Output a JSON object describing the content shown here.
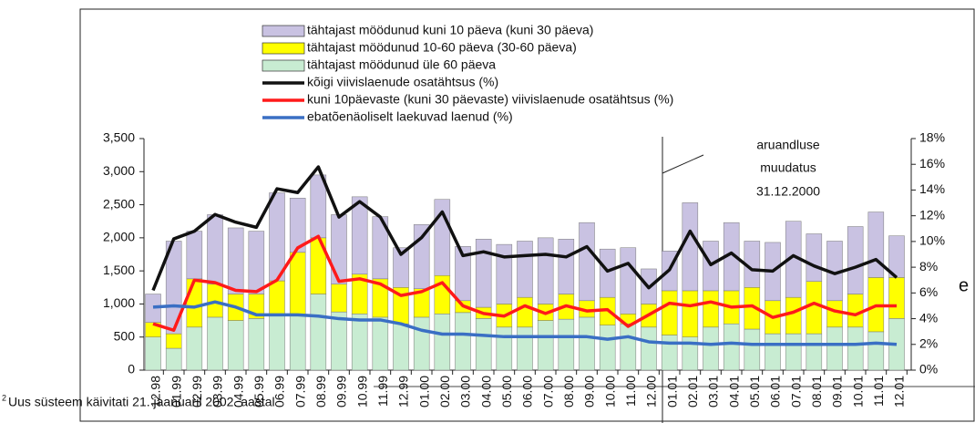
{
  "chart_data": {
    "type": "bar",
    "categories": [
      "12.98",
      "01.99",
      "02.99",
      "03.99",
      "04.99",
      "05.99",
      "06.99",
      "07.99",
      "08.99",
      "09.99",
      "10.99",
      "11.99",
      "12.99",
      "01.00",
      "02.00",
      "03.00",
      "04.00",
      "05.00",
      "06.00",
      "07.00",
      "08.00",
      "09.00",
      "10.00",
      "11.00",
      "12.00",
      "01.01",
      "02.01",
      "03.01",
      "04.01",
      "05.01",
      "06.01",
      "07.01",
      "08.01",
      "09.01",
      "10.01",
      "11.01",
      "12.01"
    ],
    "series": [
      {
        "name": "tähtajast möödunud üle 60 päeva",
        "color": "#c8ecd2",
        "kind": "bar",
        "values": [
          500,
          330,
          650,
          800,
          750,
          780,
          830,
          830,
          1150,
          880,
          850,
          800,
          700,
          800,
          850,
          870,
          780,
          650,
          650,
          750,
          770,
          800,
          680,
          700,
          650,
          530,
          500,
          650,
          700,
          620,
          550,
          550,
          550,
          650,
          650,
          580,
          780
        ]
      },
      {
        "name": "tähtajast möödunud 10-60 päeva (30-60 päeva)",
        "color": "#ffff00",
        "kind": "bar",
        "values": [
          220,
          220,
          730,
          500,
          400,
          370,
          520,
          950,
          850,
          420,
          600,
          580,
          550,
          430,
          580,
          180,
          170,
          350,
          450,
          250,
          380,
          250,
          420,
          150,
          350,
          670,
          700,
          550,
          500,
          630,
          500,
          550,
          790,
          400,
          500,
          820,
          620
        ]
      },
      {
        "name": "tähtajast möödunud kuni 10 päeva (kuni 30 päeva)",
        "color": "#c9c2e2",
        "kind": "bar",
        "values": [
          430,
          1400,
          720,
          1050,
          1000,
          950,
          1330,
          820,
          950,
          1050,
          1170,
          940,
          600,
          970,
          1150,
          820,
          1030,
          900,
          850,
          1000,
          830,
          1180,
          730,
          1000,
          530,
          600,
          1330,
          750,
          1030,
          700,
          880,
          1150,
          720,
          900,
          1020,
          990,
          630
        ]
      },
      {
        "name": "kõigi viivislaenude osatähtsus (%)",
        "color": "#111111",
        "kind": "line",
        "axis": "y2",
        "values": [
          6.2,
          10.2,
          10.8,
          12.1,
          11.5,
          11.1,
          14.1,
          13.8,
          15.8,
          11.9,
          13.1,
          11.9,
          9.0,
          10.3,
          12.3,
          8.9,
          9.2,
          8.8,
          8.9,
          9.0,
          8.8,
          9.6,
          7.7,
          8.3,
          6.4,
          7.8,
          10.8,
          8.2,
          9.1,
          7.8,
          7.7,
          8.9,
          8.1,
          7.5,
          8.0,
          8.6,
          7.2
        ]
      },
      {
        "name": "kuni 10päevaste (kuni 30 päevaste) viivislaenude osatähtsus (%)",
        "color": "#ff1a1a",
        "kind": "line",
        "axis": "y2",
        "values": [
          3.6,
          3.1,
          7.0,
          6.8,
          6.2,
          6.1,
          7.0,
          9.5,
          10.4,
          6.9,
          7.1,
          6.7,
          5.8,
          6.1,
          6.8,
          5.0,
          4.4,
          4.2,
          5.0,
          4.4,
          5.0,
          4.6,
          4.7,
          3.4,
          4.3,
          5.2,
          5.0,
          5.3,
          4.9,
          5.0,
          4.1,
          4.5,
          5.2,
          4.6,
          4.3,
          5.0,
          5.0
        ]
      },
      {
        "name": "ebatõenäoliselt laekuvad laenud (%)",
        "color": "#3a6fc4",
        "kind": "line",
        "axis": "y2",
        "values": [
          4.9,
          5.0,
          4.9,
          5.3,
          4.9,
          4.3,
          4.3,
          4.3,
          4.2,
          4.0,
          3.9,
          3.9,
          3.6,
          3.1,
          2.8,
          2.8,
          2.7,
          2.6,
          2.6,
          2.6,
          2.6,
          2.6,
          2.4,
          2.6,
          2.2,
          2.1,
          2.1,
          2.0,
          2.1,
          2.0,
          2.0,
          2.0,
          2.0,
          2.0,
          2.0,
          2.1,
          2.0
        ]
      }
    ],
    "ylim": [
      0,
      3500
    ],
    "yticks": [
      0,
      500,
      {
        "value": 1000,
        "label": "1,000"
      },
      {
        "value": 1500,
        "label": "1,500"
      },
      {
        "value": 2000,
        "label": "2,000"
      },
      {
        "value": 2500,
        "label": "2,500"
      },
      {
        "value": 3000,
        "label": "3,000"
      },
      {
        "value": 3500,
        "label": "3,500"
      }
    ],
    "y2lim": [
      0,
      18
    ],
    "y2ticks": [
      {
        "value": 0,
        "label": "0%"
      },
      {
        "value": 2,
        "label": "2%"
      },
      {
        "value": 4,
        "label": "4%"
      },
      {
        "value": 6,
        "label": "6%"
      },
      {
        "value": 8,
        "label": "8%"
      },
      {
        "value": 10,
        "label": "10%"
      },
      {
        "value": 12,
        "label": "12%"
      },
      {
        "value": 14,
        "label": "14%"
      },
      {
        "value": 16,
        "label": "16%"
      },
      {
        "value": 18,
        "label": "18%"
      }
    ],
    "annotation": [
      "aruandluse",
      "muudatus",
      "31.12.2000"
    ],
    "footnote_mark": "2",
    "footnote": "Uus süsteem käivitati 21. jaanuaril 2002. aastal",
    "edge_text": "e"
  }
}
